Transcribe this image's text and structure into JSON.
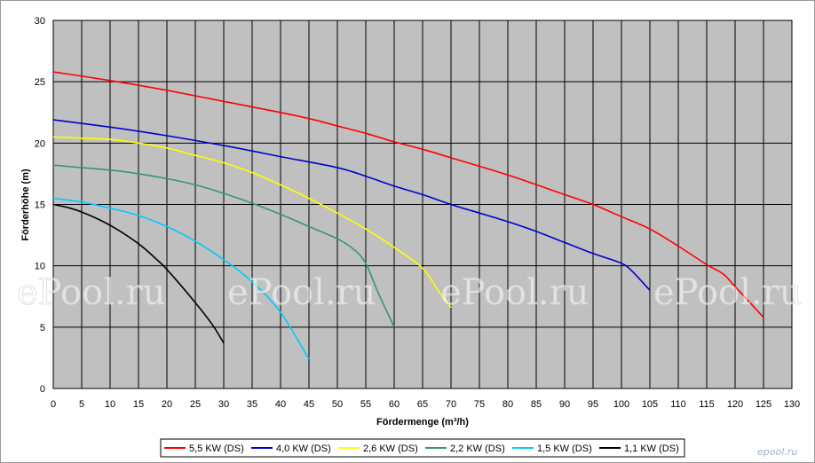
{
  "chart_data": {
    "type": "line",
    "title": "",
    "xlabel": "Fördermenge (m³/h)",
    "ylabel": "Förderhöhe (m)",
    "xlim": [
      0,
      130
    ],
    "ylim": [
      0,
      30
    ],
    "x_ticks": [
      0,
      5,
      10,
      15,
      20,
      25,
      30,
      35,
      40,
      45,
      50,
      55,
      60,
      65,
      70,
      75,
      80,
      85,
      90,
      95,
      100,
      105,
      110,
      115,
      120,
      125,
      130
    ],
    "y_ticks": [
      0,
      5,
      10,
      15,
      20,
      25,
      30
    ],
    "grid": true,
    "legend_position": "bottom",
    "series": [
      {
        "name": "5,5 KW (DS)",
        "color": "#ff0000",
        "points": [
          [
            0,
            25.8
          ],
          [
            10,
            25.1
          ],
          [
            20,
            24.3
          ],
          [
            30,
            23.4
          ],
          [
            40,
            22.5
          ],
          [
            45,
            22.0
          ],
          [
            50,
            21.4
          ],
          [
            55,
            20.8
          ],
          [
            60,
            20.1
          ],
          [
            65,
            19.5
          ],
          [
            70,
            18.8
          ],
          [
            80,
            17.4
          ],
          [
            90,
            15.8
          ],
          [
            95,
            15.0
          ],
          [
            100,
            14.0
          ],
          [
            105,
            13.0
          ],
          [
            110,
            11.6
          ],
          [
            115,
            10.1
          ],
          [
            118,
            9.3
          ],
          [
            120,
            8.3
          ],
          [
            125,
            5.8
          ]
        ]
      },
      {
        "name": "4,0 KW (DS)",
        "color": "#0000cc",
        "points": [
          [
            0,
            21.9
          ],
          [
            10,
            21.3
          ],
          [
            20,
            20.6
          ],
          [
            30,
            19.8
          ],
          [
            40,
            18.9
          ],
          [
            50,
            18.0
          ],
          [
            55,
            17.3
          ],
          [
            60,
            16.5
          ],
          [
            65,
            15.8
          ],
          [
            70,
            15.0
          ],
          [
            75,
            14.3
          ],
          [
            80,
            13.6
          ],
          [
            85,
            12.8
          ],
          [
            90,
            11.9
          ],
          [
            95,
            11.0
          ],
          [
            100,
            10.2
          ],
          [
            102,
            9.5
          ],
          [
            105,
            8.0
          ]
        ]
      },
      {
        "name": "2,6 KW (DS)",
        "color": "#ffff00",
        "points": [
          [
            0,
            20.5
          ],
          [
            5,
            20.4
          ],
          [
            10,
            20.3
          ],
          [
            15,
            20.0
          ],
          [
            20,
            19.6
          ],
          [
            25,
            19.0
          ],
          [
            30,
            18.4
          ],
          [
            35,
            17.6
          ],
          [
            40,
            16.6
          ],
          [
            45,
            15.5
          ],
          [
            50,
            14.3
          ],
          [
            55,
            13.0
          ],
          [
            60,
            11.5
          ],
          [
            65,
            9.8
          ],
          [
            68,
            7.8
          ],
          [
            70,
            6.6
          ]
        ]
      },
      {
        "name": "2,2 KW (DS)",
        "color": "#339966",
        "points": [
          [
            0,
            18.2
          ],
          [
            5,
            18.0
          ],
          [
            10,
            17.8
          ],
          [
            15,
            17.5
          ],
          [
            20,
            17.1
          ],
          [
            25,
            16.6
          ],
          [
            30,
            15.9
          ],
          [
            35,
            15.1
          ],
          [
            40,
            14.2
          ],
          [
            45,
            13.2
          ],
          [
            50,
            12.2
          ],
          [
            53,
            11.3
          ],
          [
            55,
            10.2
          ],
          [
            57,
            8.0
          ],
          [
            60,
            5.0
          ]
        ]
      },
      {
        "name": "1,5 KW (DS)",
        "color": "#00ccff",
        "points": [
          [
            0,
            15.5
          ],
          [
            5,
            15.2
          ],
          [
            10,
            14.7
          ],
          [
            15,
            14.1
          ],
          [
            20,
            13.2
          ],
          [
            25,
            12.0
          ],
          [
            30,
            10.5
          ],
          [
            35,
            8.7
          ],
          [
            40,
            6.2
          ],
          [
            45,
            2.4
          ]
        ]
      },
      {
        "name": "1,1 KW (DS)",
        "color": "#000000",
        "points": [
          [
            0,
            15.0
          ],
          [
            3,
            14.7
          ],
          [
            6,
            14.2
          ],
          [
            10,
            13.3
          ],
          [
            15,
            11.8
          ],
          [
            18,
            10.6
          ],
          [
            20,
            9.7
          ],
          [
            25,
            7.0
          ],
          [
            28,
            5.2
          ],
          [
            30,
            3.7
          ]
        ]
      }
    ]
  },
  "watermark": "ePool.ru",
  "logo": "epool.ru",
  "colors": {
    "plot_background": "#c0c0c0",
    "grid": "#000000"
  }
}
